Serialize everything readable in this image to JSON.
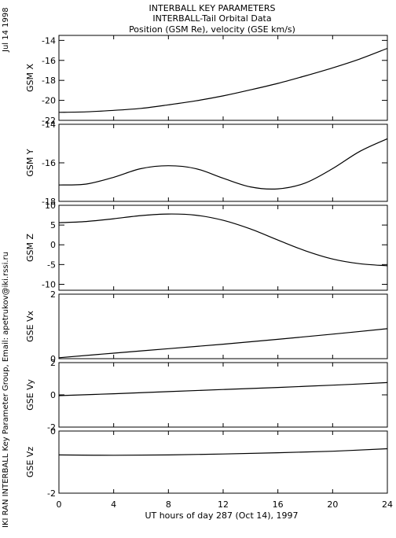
{
  "side": {
    "date": "Jul 14 1998",
    "credit": "IKI RAN INTERBALL Key Parameter Group, Email: apetrukov@iki.rssi.ru"
  },
  "header": {
    "line1": "INTERBALL KEY PARAMETERS",
    "line2": "INTERBALL-Tail Orbital Data",
    "line3": "Position (GSM Re), velocity (GSE km/s)"
  },
  "xaxis": {
    "label": "UT hours of day 287 (Oct 14), 1997",
    "range": [
      0,
      24
    ],
    "ticks": [
      "0",
      "4",
      "8",
      "12",
      "16",
      "20",
      "24"
    ]
  },
  "chart_data": [
    {
      "type": "line",
      "ylabel": "GSM X",
      "ylim": [
        -22,
        -13.5
      ],
      "yticks": [
        "-14",
        "-16",
        "-18",
        "-20",
        "-22"
      ],
      "x": [
        0,
        2,
        4,
        6,
        8,
        10,
        12,
        14,
        16,
        18,
        20,
        22,
        24
      ],
      "values": [
        -21.2,
        -21.15,
        -21.0,
        -20.8,
        -20.45,
        -20.05,
        -19.55,
        -18.95,
        -18.3,
        -17.55,
        -16.75,
        -15.85,
        -14.8
      ]
    },
    {
      "type": "line",
      "ylabel": "GSM Y",
      "ylim": [
        -18,
        -14
      ],
      "yticks": [
        "-14",
        "-16",
        "-18"
      ],
      "x": [
        0,
        2,
        4,
        6,
        8,
        10,
        12,
        14,
        16,
        18,
        20,
        22,
        24
      ],
      "values": [
        -17.15,
        -17.1,
        -16.75,
        -16.3,
        -16.15,
        -16.3,
        -16.8,
        -17.25,
        -17.35,
        -17.05,
        -16.3,
        -15.4,
        -14.75
      ]
    },
    {
      "type": "line",
      "ylabel": "GSM Z",
      "ylim": [
        -11.5,
        10
      ],
      "yticks": [
        "10",
        "5",
        "0",
        "-5",
        "-10"
      ],
      "x": [
        0,
        2,
        4,
        6,
        8,
        10,
        12,
        14,
        16,
        18,
        20,
        22,
        24
      ],
      "values": [
        5.6,
        5.9,
        6.6,
        7.4,
        7.8,
        7.5,
        6.2,
        4.0,
        1.2,
        -1.5,
        -3.6,
        -4.8,
        -5.3
      ]
    },
    {
      "type": "line",
      "ylabel": "GSE Vx",
      "ylim": [
        0,
        2
      ],
      "yticks": [
        "2",
        "0"
      ],
      "x": [
        0,
        4,
        8,
        12,
        16,
        20,
        24
      ],
      "values": [
        0.03,
        0.17,
        0.31,
        0.45,
        0.6,
        0.76,
        0.93
      ]
    },
    {
      "type": "line",
      "ylabel": "GSE Vy",
      "ylim": [
        -2,
        2
      ],
      "yticks": [
        "2",
        "0",
        "-2"
      ],
      "x": [
        0,
        4,
        8,
        12,
        16,
        20,
        24
      ],
      "values": [
        -0.05,
        0.07,
        0.2,
        0.33,
        0.46,
        0.6,
        0.76
      ]
    },
    {
      "type": "line",
      "ylabel": "GSE Vz",
      "ylim": [
        -2,
        0
      ],
      "yticks": [
        "0",
        "-2"
      ],
      "x": [
        0,
        4,
        8,
        12,
        16,
        20,
        24
      ],
      "values": [
        -0.77,
        -0.78,
        -0.77,
        -0.74,
        -0.7,
        -0.65,
        -0.57
      ]
    }
  ]
}
